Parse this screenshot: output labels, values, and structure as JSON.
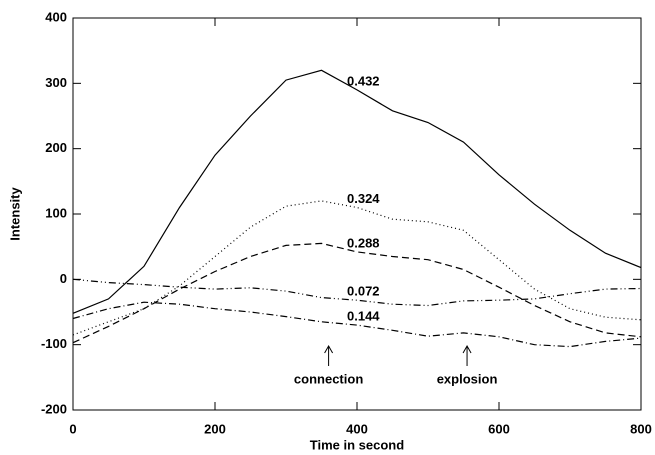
{
  "chart_data": {
    "type": "line",
    "x_label": "Time in second",
    "y_label": "Intensity",
    "x": [
      0,
      50,
      100,
      150,
      200,
      250,
      300,
      350,
      400,
      450,
      500,
      550,
      600,
      650,
      700,
      750,
      800
    ],
    "series": [
      {
        "name": "0.432",
        "color": "#000000",
        "style": "solid",
        "values": [
          -52,
          -30,
          20,
          110,
          190,
          250,
          305,
          320,
          290,
          258,
          240,
          210,
          160,
          115,
          75,
          40,
          18
        ]
      },
      {
        "name": "0.324",
        "color": "#000000",
        "style": "dotted",
        "values": [
          -85,
          -65,
          -45,
          -10,
          35,
          80,
          112,
          120,
          110,
          92,
          88,
          75,
          30,
          -15,
          -45,
          -58,
          -62
        ]
      },
      {
        "name": "0.288",
        "color": "#000000",
        "style": "dashed",
        "values": [
          -97,
          -72,
          -45,
          -15,
          12,
          35,
          52,
          55,
          42,
          35,
          30,
          15,
          -12,
          -40,
          -65,
          -82,
          -88
        ]
      },
      {
        "name": "0.072",
        "color": "#000000",
        "style": "dash-dot-dot",
        "values": [
          0,
          -5,
          -8,
          -12,
          -15,
          -13,
          -18,
          -28,
          -32,
          -38,
          -40,
          -33,
          -32,
          -30,
          -22,
          -15,
          -14
        ]
      },
      {
        "name": "0.144",
        "color": "#000000",
        "style": "dash-dot",
        "values": [
          -60,
          -45,
          -35,
          -38,
          -45,
          -50,
          -57,
          -65,
          -70,
          -78,
          -87,
          -82,
          -88,
          -100,
          -103,
          -95,
          -90
        ]
      }
    ],
    "annotations": [
      {
        "text": "connection",
        "x": 360
      },
      {
        "text": "explosion",
        "x": 555
      }
    ],
    "xlim": [
      0,
      800
    ],
    "xticks": [
      0,
      200,
      400,
      600,
      800
    ],
    "ylim": [
      -200,
      400
    ],
    "yticks": [
      -200,
      -100,
      0,
      100,
      200,
      300,
      400
    ],
    "grid": false
  }
}
